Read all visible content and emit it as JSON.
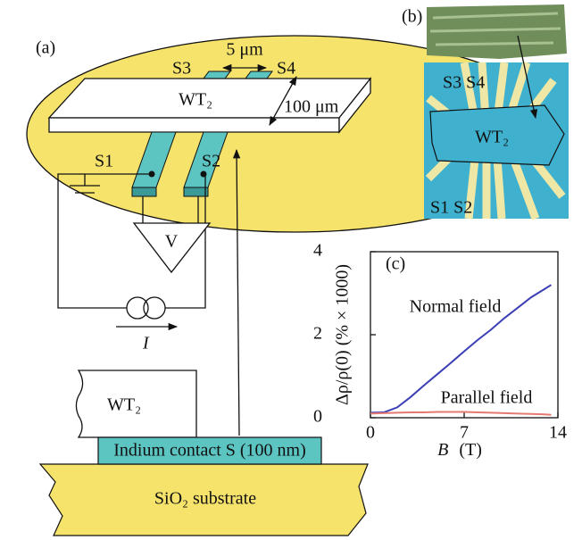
{
  "panel_a": {
    "label": "(a)",
    "gap": "5 μm",
    "s3": "S3",
    "s4": "S4",
    "flake": "WT₂",
    "width": "100 μm",
    "s1": "S1",
    "s2": "S2",
    "meter": "V",
    "current": "I",
    "side_flake": "WT₂",
    "contact": "Indium contact S (100 nm)",
    "substrate": "SiO₂ substrate"
  },
  "panel_b": {
    "label": "(b)",
    "top_contacts": "S3 S4",
    "flake": "WT₂",
    "bottom_contacts": "S1 S2"
  },
  "chart_data": {
    "type": "line",
    "label": "(c)",
    "ylabel": "Δρ/ρ(0)  (% × 1000)",
    "xlabel": "B",
    "xlabel_unit": "(T)",
    "x": [
      0,
      1,
      2,
      3,
      4,
      5,
      6,
      7,
      8,
      9,
      10,
      11,
      12,
      13,
      13.5
    ],
    "series": [
      {
        "name": "Normal field",
        "color": "#3b3fb5",
        "values": [
          0.12,
          0.13,
          0.25,
          0.5,
          0.78,
          1.05,
          1.32,
          1.6,
          1.87,
          2.12,
          2.4,
          2.65,
          2.9,
          3.1,
          3.2
        ]
      },
      {
        "name": "Parallel field",
        "color": "#e57a72",
        "values": [
          0.1,
          0.11,
          0.12,
          0.13,
          0.13,
          0.14,
          0.14,
          0.14,
          0.13,
          0.12,
          0.11,
          0.1,
          0.09,
          0.08,
          0.07
        ]
      }
    ],
    "xlim": [
      0,
      14
    ],
    "ylim": [
      0,
      4
    ],
    "xticks": [
      0,
      7,
      14
    ],
    "yticks": [
      0,
      2,
      4
    ]
  }
}
